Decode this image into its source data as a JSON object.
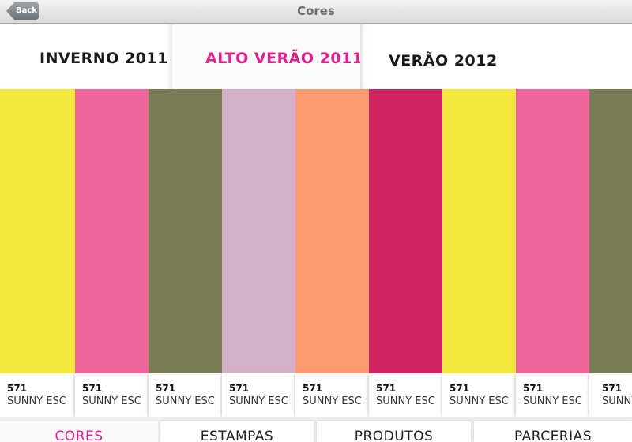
{
  "nav": {
    "back_label": "Back",
    "title": "Cores"
  },
  "seasons": [
    {
      "label": "INVERNO 2011",
      "active": false
    },
    {
      "label": "ALTO VERÃO 2011",
      "active": true
    },
    {
      "label": "VERÃO 2012",
      "active": false
    }
  ],
  "swatches": [
    {
      "color": "#f2e93c",
      "code": "571",
      "name": "SUNNY ESC"
    },
    {
      "color": "#ec659b",
      "code": "571",
      "name": "SUNNY ESC"
    },
    {
      "color": "#7a7a55",
      "code": "571",
      "name": "SUNNY ESC"
    },
    {
      "color": "#d2b0c8",
      "code": "571",
      "name": "SUNNY ESC"
    },
    {
      "color": "#fd9a6f",
      "code": "571",
      "name": "SUNNY ESC"
    },
    {
      "color": "#cf2461",
      "code": "571",
      "name": "SUNNY ESC"
    },
    {
      "color": "#f2e93c",
      "code": "571",
      "name": "SUNNY ESC"
    },
    {
      "color": "#ec659b",
      "code": "571",
      "name": "SUNNY ESC"
    },
    {
      "color": "#7a7a55",
      "code": "571",
      "name": "SUNNY ESC"
    }
  ],
  "bottom_tabs": [
    {
      "label": "CORES",
      "active": true
    },
    {
      "label": "ESTAMPAS",
      "active": false
    },
    {
      "label": "PRODUTOS",
      "active": false
    },
    {
      "label": "PARCERIAS",
      "active": false
    }
  ],
  "colors": {
    "accent": "#e0208e"
  }
}
